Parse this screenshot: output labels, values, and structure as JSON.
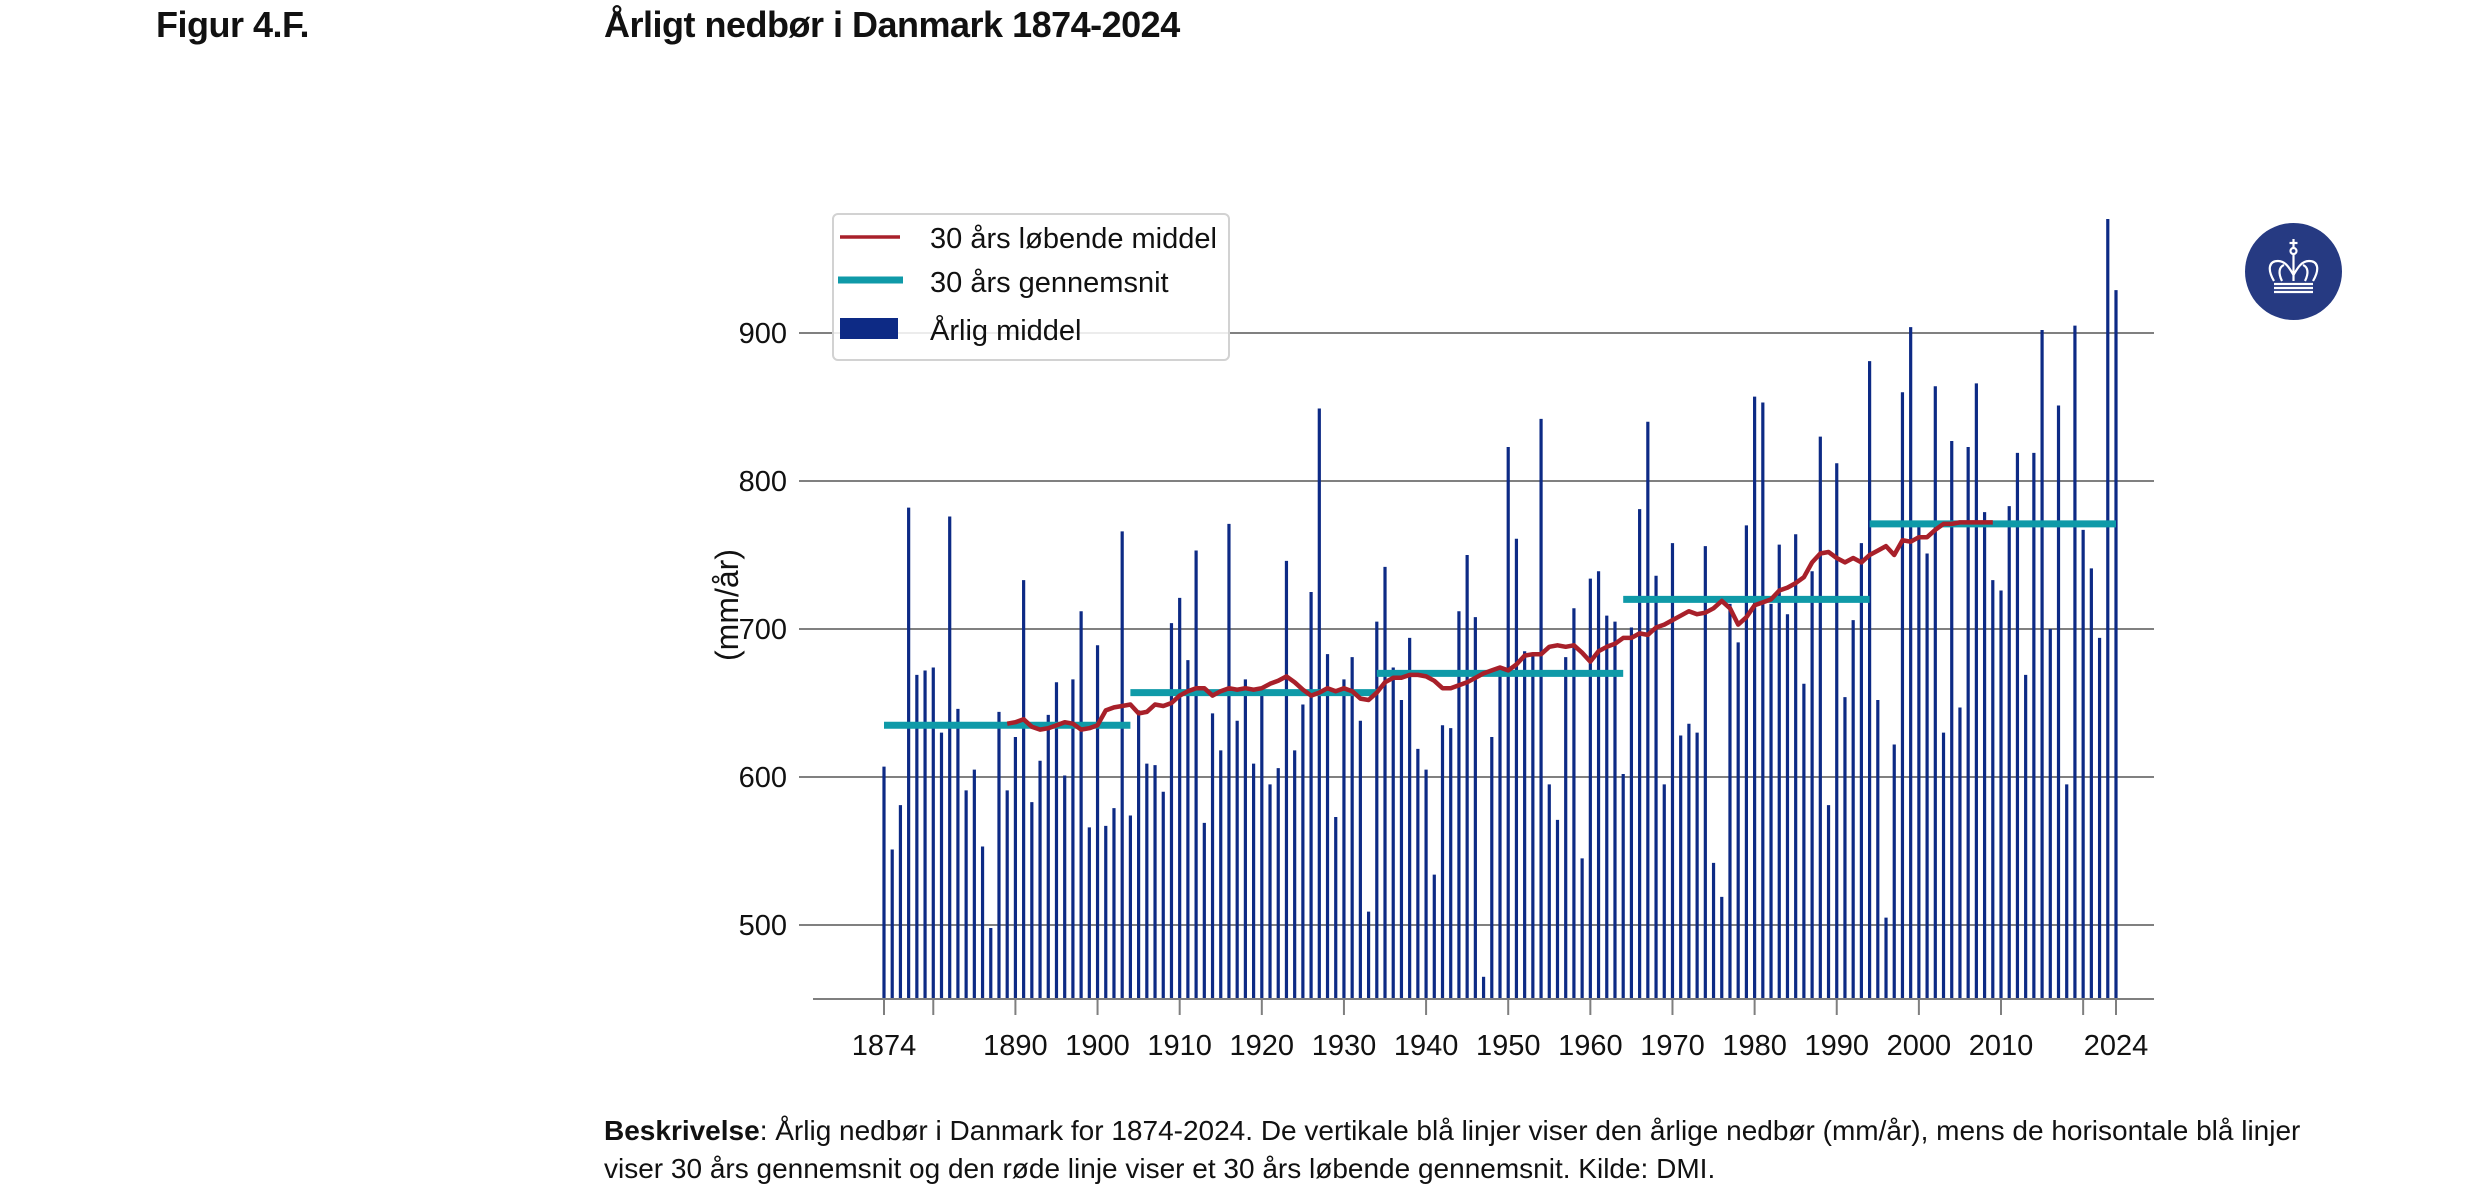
{
  "figure": {
    "label": "Figur 4.F.",
    "title": "Årligt nedbør i Danmark 1874-2024"
  },
  "logo": {
    "icon": "crown-icon",
    "bg_color": "#263a82"
  },
  "description": {
    "bold_label": "Beskrivelse",
    "text": ": Årlig nedbør i Danmark for 1874-2024. De vertikale blå linjer viser den årlige nedbør (mm/år), mens de horisontale blå linjer viser 30 års gennemsnit og den røde linje viser et 30 års løbende gennemsnit. Kilde: DMI."
  },
  "chart_data": {
    "type": "bar",
    "title": "Årligt nedbør i Danmark 1874-2024",
    "xlabel": "",
    "ylabel": "(mm/år)",
    "ylim": [
      450,
      990
    ],
    "xlim": [
      1874,
      2024
    ],
    "grid": true,
    "yticks": [
      500,
      600,
      700,
      800,
      900
    ],
    "xticks": [
      1874,
      1880,
      1890,
      1900,
      1910,
      1920,
      1930,
      1940,
      1950,
      1960,
      1970,
      1980,
      1990,
      2000,
      2010,
      2020,
      2024
    ],
    "xtick_labels": [
      "1874",
      "",
      "1890",
      "1900",
      "1910",
      "1920",
      "1930",
      "1940",
      "1950",
      "1960",
      "1970",
      "1980",
      "1990",
      "2000",
      "2010",
      "",
      "2024"
    ],
    "legend": {
      "placement": "top-left",
      "entries": [
        {
          "label": "30 års løbende middel",
          "color": "#a8202a",
          "kind": "line"
        },
        {
          "label": "30 års gennemsnit",
          "color": "#0f9aa8",
          "kind": "thick-line"
        },
        {
          "label": "Årlig middel",
          "color": "#0d2a85",
          "kind": "patch"
        }
      ]
    },
    "series": [
      {
        "name": "Årlig middel",
        "kind": "bar",
        "color": "#0d2a85",
        "start_year": 1874,
        "values": [
          607,
          551,
          581,
          782,
          669,
          672,
          674,
          630,
          776,
          646,
          591,
          605,
          553,
          498,
          644,
          591,
          627,
          733,
          583,
          611,
          642,
          664,
          601,
          666,
          712,
          566,
          689,
          567,
          579,
          766,
          574,
          645,
          609,
          608,
          590,
          704,
          721,
          679,
          753,
          569,
          643,
          618,
          771,
          638,
          666,
          609,
          661,
          595,
          606,
          746,
          618,
          649,
          725,
          849,
          683,
          573,
          666,
          681,
          638,
          509,
          705,
          742,
          674,
          652,
          694,
          619,
          605,
          534,
          635,
          633,
          712,
          750,
          708,
          465,
          627,
          670,
          823,
          761,
          685,
          683,
          842,
          595,
          571,
          681,
          714,
          545,
          734,
          739,
          709,
          705,
          602,
          701,
          781,
          840,
          736,
          595,
          758,
          628,
          636,
          630,
          756,
          542,
          519,
          717,
          691,
          770,
          857,
          853,
          717,
          757,
          710,
          764,
          663,
          739,
          830,
          581,
          812,
          654,
          706,
          758,
          881,
          652,
          505,
          622,
          860,
          904,
          769,
          751,
          864,
          630,
          827,
          647,
          823,
          866,
          779,
          733,
          726,
          783,
          819,
          669,
          819,
          902,
          700,
          851,
          595,
          905,
          767,
          741,
          694,
          977,
          929
        ]
      },
      {
        "name": "30 års løbende middel",
        "kind": "line",
        "color": "#a8202a",
        "x": [
          1889,
          1890,
          1891,
          1892,
          1893,
          1894,
          1895,
          1896,
          1897,
          1898,
          1899,
          1900,
          1901,
          1902,
          1903,
          1904,
          1905,
          1906,
          1907,
          1908,
          1909,
          1910,
          1911,
          1912,
          1913,
          1914,
          1915,
          1916,
          1917,
          1918,
          1919,
          1920,
          1921,
          1922,
          1923,
          1924,
          1925,
          1926,
          1927,
          1928,
          1929,
          1930,
          1931,
          1932,
          1933,
          1934,
          1935,
          1936,
          1937,
          1938,
          1939,
          1940,
          1941,
          1942,
          1943,
          1944,
          1945,
          1946,
          1947,
          1948,
          1949,
          1950,
          1951,
          1952,
          1953,
          1954,
          1955,
          1956,
          1957,
          1958,
          1959,
          1960,
          1961,
          1962,
          1963,
          1964,
          1965,
          1966,
          1967,
          1968,
          1969,
          1970,
          1971,
          1972,
          1973,
          1974,
          1975,
          1976,
          1977,
          1978,
          1979,
          1980,
          1981,
          1982,
          1983,
          1984,
          1985,
          1986,
          1987,
          1988,
          1989,
          1990,
          1991,
          1992,
          1993,
          1994,
          1995,
          1996,
          1997,
          1998,
          1999,
          2000,
          2001,
          2002,
          2003,
          2004,
          2005,
          2006,
          2007,
          2008,
          2009
        ],
        "values": [
          636,
          637,
          639,
          634,
          632,
          633,
          635,
          637,
          636,
          632,
          633,
          635,
          645,
          647,
          648,
          649,
          643,
          644,
          649,
          648,
          650,
          655,
          658,
          660,
          660,
          655,
          658,
          660,
          659,
          660,
          659,
          660,
          663,
          665,
          668,
          664,
          659,
          655,
          657,
          660,
          658,
          660,
          658,
          653,
          652,
          657,
          664,
          667,
          667,
          669,
          669,
          668,
          665,
          660,
          660,
          662,
          664,
          667,
          670,
          672,
          674,
          672,
          676,
          682,
          683,
          683,
          688,
          689,
          688,
          689,
          684,
          678,
          685,
          688,
          690,
          694,
          694,
          697,
          696,
          701,
          703,
          706,
          709,
          712,
          710,
          711,
          714,
          719,
          714,
          703,
          708,
          716,
          718,
          720,
          726,
          728,
          731,
          735,
          745,
          751,
          752,
          748,
          745,
          748,
          745,
          750,
          753,
          756,
          750,
          760,
          759,
          762,
          762,
          767,
          771,
          771,
          772,
          772,
          772,
          772,
          772
        ]
      },
      {
        "name": "30 års gennemsnit",
        "kind": "step-segments",
        "color": "#0f9aa8",
        "segments": [
          {
            "from": 1874,
            "to": 1904,
            "value": 635
          },
          {
            "from": 1904,
            "to": 1934,
            "value": 657
          },
          {
            "from": 1934,
            "to": 1964,
            "value": 670
          },
          {
            "from": 1964,
            "to": 1994,
            "value": 720
          },
          {
            "from": 1994,
            "to": 2024,
            "value": 771
          }
        ]
      }
    ]
  }
}
